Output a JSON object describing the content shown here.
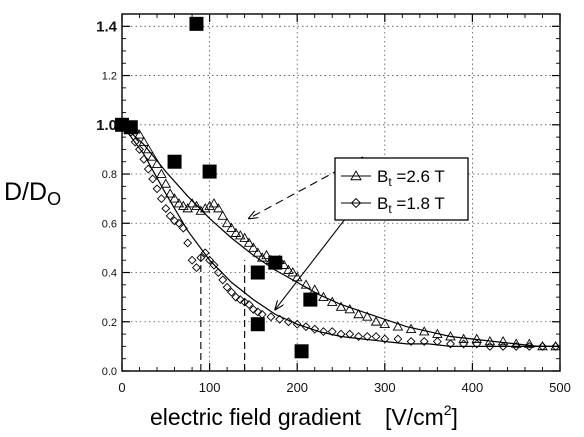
{
  "chart_data": {
    "type": "scatter",
    "title": "",
    "ylabel": {
      "main": "D/D",
      "sub": "O"
    },
    "xlabel": {
      "main": "electric field gradient",
      "unit": "[V/cm",
      "unit_sup": "2",
      "unit_end": "]"
    },
    "xlim": [
      0,
      500
    ],
    "ylim": [
      0,
      1.45
    ],
    "x_ticks": [
      "0",
      "100",
      "200",
      "300",
      "400",
      "500"
    ],
    "x_tick_values": [
      0,
      100,
      200,
      300,
      400,
      500
    ],
    "y_ticks": [
      "0.0",
      "0.2",
      "0.4",
      "0.6",
      "0.8",
      "1.0",
      "1.2",
      "1.4"
    ],
    "y_tick_values": [
      0,
      0.2,
      0.4,
      0.6,
      0.8,
      1.0,
      1.2,
      1.4
    ],
    "grid": "dotted",
    "legend_position": "center-right",
    "series": [
      {
        "name": "B_t =2.6 T",
        "name_prefix": "B",
        "name_sub": "t",
        "name_suffix": " =2.6 T",
        "marker": "triangle",
        "x": [
          5,
          10,
          15,
          20,
          25,
          30,
          35,
          40,
          45,
          50,
          55,
          60,
          65,
          70,
          75,
          80,
          85,
          90,
          95,
          100,
          105,
          110,
          115,
          120,
          125,
          130,
          135,
          140,
          145,
          150,
          155,
          160,
          165,
          170,
          175,
          180,
          185,
          190,
          195,
          200,
          210,
          220,
          230,
          240,
          250,
          260,
          270,
          280,
          290,
          300,
          315,
          330,
          345,
          360,
          375,
          390,
          405,
          420,
          435,
          450,
          465,
          480,
          495
        ],
        "y": [
          1.0,
          0.99,
          0.98,
          0.96,
          0.93,
          0.9,
          0.87,
          0.84,
          0.8,
          0.76,
          0.72,
          0.7,
          0.68,
          0.67,
          0.66,
          0.68,
          0.67,
          0.65,
          0.66,
          0.67,
          0.68,
          0.66,
          0.63,
          0.6,
          0.58,
          0.56,
          0.55,
          0.54,
          0.52,
          0.5,
          0.48,
          0.46,
          0.47,
          0.45,
          0.44,
          0.45,
          0.43,
          0.41,
          0.4,
          0.38,
          0.35,
          0.33,
          0.3,
          0.28,
          0.26,
          0.25,
          0.23,
          0.22,
          0.2,
          0.19,
          0.18,
          0.17,
          0.16,
          0.15,
          0.14,
          0.13,
          0.13,
          0.12,
          0.12,
          0.11,
          0.11,
          0.1,
          0.1
        ]
      },
      {
        "name": "B_t =1.8 T",
        "name_prefix": "B",
        "name_sub": "t",
        "name_suffix": " =1.8 T",
        "marker": "diamond",
        "x": [
          5,
          10,
          15,
          20,
          25,
          30,
          35,
          40,
          45,
          50,
          55,
          60,
          65,
          70,
          75,
          80,
          85,
          90,
          95,
          100,
          105,
          110,
          115,
          120,
          125,
          130,
          135,
          140,
          145,
          150,
          155,
          160,
          170,
          180,
          190,
          200,
          210,
          220,
          230,
          240,
          250,
          260,
          270,
          280,
          290,
          300,
          315,
          330,
          345,
          360,
          375,
          390,
          405,
          420,
          435,
          450,
          465,
          480,
          495
        ],
        "y": [
          0.99,
          0.97,
          0.93,
          0.9,
          0.86,
          0.82,
          0.78,
          0.74,
          0.7,
          0.66,
          0.63,
          0.61,
          0.6,
          0.58,
          0.52,
          0.45,
          0.42,
          0.46,
          0.48,
          0.45,
          0.43,
          0.4,
          0.37,
          0.34,
          0.32,
          0.3,
          0.29,
          0.28,
          0.27,
          0.25,
          0.24,
          0.23,
          0.22,
          0.21,
          0.2,
          0.19,
          0.18,
          0.17,
          0.16,
          0.16,
          0.15,
          0.15,
          0.14,
          0.14,
          0.14,
          0.13,
          0.13,
          0.12,
          0.12,
          0.12,
          0.11,
          0.11,
          0.11,
          0.1,
          0.1,
          0.1,
          0.1,
          0.1,
          0.1
        ]
      },
      {
        "name": "",
        "marker": "square",
        "x": [
          0,
          10,
          60,
          85,
          100,
          155,
          175,
          215,
          155,
          205
        ],
        "y": [
          1.0,
          0.99,
          0.85,
          1.41,
          0.81,
          0.4,
          0.44,
          0.29,
          0.19,
          0.08
        ]
      }
    ],
    "fit_curves": [
      {
        "for": "B_t =2.6 T",
        "x": [
          0,
          25,
          50,
          75,
          100,
          125,
          150,
          175,
          200,
          225,
          250,
          275,
          300,
          325,
          350,
          375,
          400,
          425,
          450,
          475,
          500
        ],
        "y": [
          1.0,
          0.92,
          0.81,
          0.71,
          0.62,
          0.54,
          0.47,
          0.41,
          0.36,
          0.31,
          0.27,
          0.24,
          0.21,
          0.18,
          0.16,
          0.14,
          0.13,
          0.12,
          0.11,
          0.1,
          0.1
        ]
      },
      {
        "for": "B_t =1.8 T",
        "x": [
          0,
          25,
          50,
          75,
          100,
          125,
          150,
          175,
          200,
          225,
          250,
          275,
          300,
          325,
          350,
          375,
          400,
          425,
          450,
          475,
          500
        ],
        "y": [
          1.0,
          0.88,
          0.72,
          0.57,
          0.45,
          0.36,
          0.29,
          0.23,
          0.19,
          0.16,
          0.14,
          0.13,
          0.12,
          0.11,
          0.11,
          0.1,
          0.1,
          0.1,
          0.1,
          0.1,
          0.1
        ]
      }
    ],
    "reference_lines": [
      {
        "x": 90,
        "y_bottom": 0,
        "y_top": 0.49
      },
      {
        "x": 140,
        "y_bottom": 0,
        "y_top": 0.45
      }
    ],
    "annotations": [
      {
        "type": "dashed-arrow",
        "from_series": "B_t =2.6 T",
        "from": [
          275,
          0.87
        ],
        "to": [
          145,
          0.62
        ]
      },
      {
        "type": "solid-arrow",
        "from_series": "B_t =1.8 T",
        "from": [
          290,
          0.78
        ],
        "to": [
          175,
          0.25
        ]
      }
    ]
  }
}
